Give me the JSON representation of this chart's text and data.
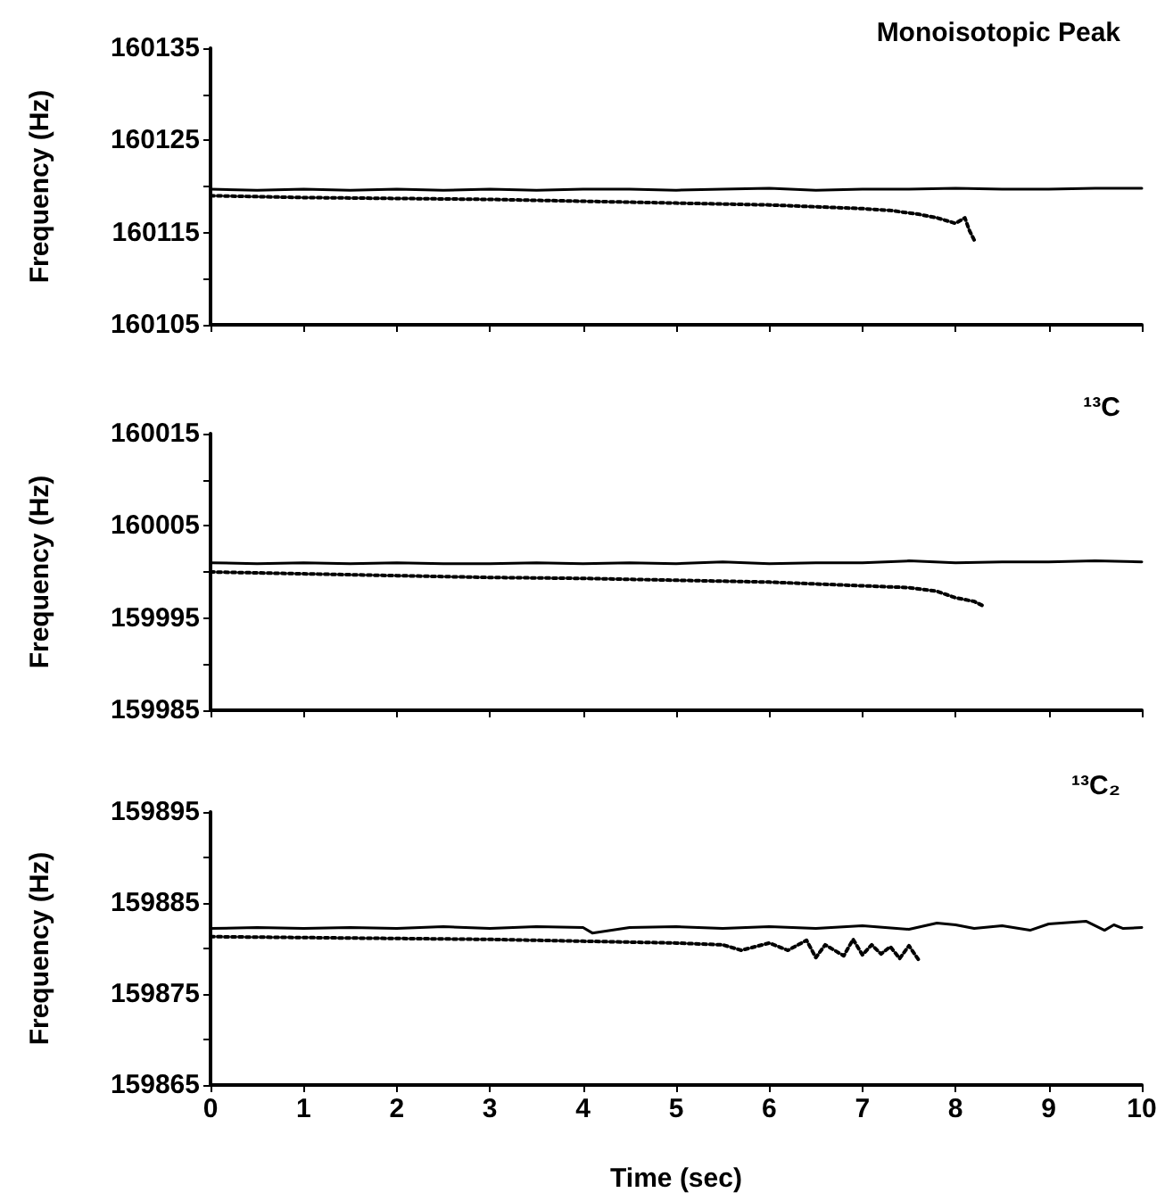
{
  "chart_data": [
    {
      "type": "line",
      "title": "Monoisotopic Peak",
      "ylabel": "Frequency (Hz)",
      "xlim": [
        0,
        10
      ],
      "xticks": [
        0,
        1,
        2,
        3,
        4,
        5,
        6,
        7,
        8,
        9,
        10
      ],
      "ylim": [
        160105,
        160135
      ],
      "yticks": [
        160105,
        {
          "value": 160110,
          "label": null
        },
        160115,
        {
          "value": 160120,
          "label": null
        },
        160125,
        {
          "value": 160130,
          "label": null
        },
        160135
      ],
      "tick_labels": "y",
      "grid": false,
      "marker": "none",
      "series": [
        {
          "color": "#000000",
          "line_style": "solid",
          "x": [
            0,
            0.5,
            1,
            1.5,
            2,
            2.5,
            3,
            3.5,
            4,
            4.5,
            5,
            5.5,
            6,
            6.5,
            7,
            7.5,
            8,
            8.5,
            9,
            9.5,
            10
          ],
          "values": [
            160119.7,
            160119.6,
            160119.7,
            160119.6,
            160119.7,
            160119.6,
            160119.7,
            160119.6,
            160119.7,
            160119.7,
            160119.6,
            160119.7,
            160119.8,
            160119.6,
            160119.7,
            160119.7,
            160119.8,
            160119.7,
            160119.7,
            160119.8,
            160119.8
          ]
        },
        {
          "color": "#000000",
          "line_style": "dotted",
          "x": [
            0,
            1,
            2,
            3,
            4,
            5,
            6,
            6.5,
            7,
            7.3,
            7.6,
            7.8,
            8.0,
            8.1,
            8.15,
            8.2
          ],
          "values": [
            160119.0,
            160118.8,
            160118.7,
            160118.6,
            160118.4,
            160118.2,
            160118.0,
            160117.8,
            160117.6,
            160117.4,
            160117.0,
            160116.6,
            160116.0,
            160116.6,
            160115.2,
            160114.2
          ]
        }
      ]
    },
    {
      "type": "line",
      "title": "¹³C",
      "ylabel": "Frequency (Hz)",
      "xlim": [
        0,
        10
      ],
      "xticks": [
        0,
        1,
        2,
        3,
        4,
        5,
        6,
        7,
        8,
        9,
        10
      ],
      "ylim": [
        159985,
        160015
      ],
      "yticks": [
        159985,
        {
          "value": 159990,
          "label": null
        },
        159995,
        {
          "value": 160000,
          "label": null
        },
        160005,
        {
          "value": 160010,
          "label": null
        },
        160015
      ],
      "tick_labels": "y",
      "grid": false,
      "marker": "none",
      "series": [
        {
          "color": "#000000",
          "line_style": "solid",
          "x": [
            0,
            0.5,
            1,
            1.5,
            2,
            2.5,
            3,
            3.5,
            4,
            4.5,
            5,
            5.5,
            6,
            6.5,
            7,
            7.5,
            8,
            8.5,
            9,
            9.5,
            10
          ],
          "values": [
            160001.0,
            160000.9,
            160001.0,
            160000.9,
            160001.0,
            160000.9,
            160000.9,
            160001.0,
            160000.9,
            160001.0,
            160000.9,
            160001.1,
            160000.9,
            160001.0,
            160001.0,
            160001.2,
            160001.0,
            160001.1,
            160001.1,
            160001.2,
            160001.1
          ]
        },
        {
          "color": "#000000",
          "line_style": "dotted",
          "x": [
            0,
            1,
            2,
            3,
            4,
            5,
            6,
            6.5,
            7,
            7.5,
            7.8,
            8.0,
            8.2,
            8.3
          ],
          "values": [
            160000.0,
            159999.8,
            159999.6,
            159999.4,
            159999.3,
            159999.1,
            159998.9,
            159998.7,
            159998.5,
            159998.3,
            159997.9,
            159997.2,
            159996.8,
            159996.3
          ]
        }
      ]
    },
    {
      "type": "line",
      "title": "¹³C₂",
      "ylabel": "Frequency (Hz)",
      "xlabel": "Time (sec)",
      "xlim": [
        0,
        10
      ],
      "xticks": [
        0,
        1,
        2,
        3,
        4,
        5,
        6,
        7,
        8,
        9,
        10
      ],
      "ylim": [
        159865,
        159895
      ],
      "yticks": [
        159865,
        {
          "value": 159870,
          "label": null
        },
        159875,
        {
          "value": 159880,
          "label": null
        },
        159885,
        {
          "value": 159890,
          "label": null
        },
        159895
      ],
      "grid": false,
      "marker": "none",
      "series": [
        {
          "color": "#000000",
          "line_style": "solid",
          "x": [
            0,
            0.5,
            1,
            1.5,
            2,
            2.5,
            3,
            3.5,
            4,
            4.1,
            4.5,
            5,
            5.5,
            6,
            6.5,
            7,
            7.5,
            7.8,
            8,
            8.2,
            8.5,
            8.8,
            9,
            9.4,
            9.6,
            9.7,
            9.8,
            10
          ],
          "values": [
            159882.2,
            159882.3,
            159882.2,
            159882.3,
            159882.2,
            159882.4,
            159882.2,
            159882.4,
            159882.3,
            159881.7,
            159882.3,
            159882.4,
            159882.2,
            159882.4,
            159882.2,
            159882.5,
            159882.1,
            159882.8,
            159882.6,
            159882.2,
            159882.5,
            159882.0,
            159882.7,
            159883.0,
            159882.0,
            159882.6,
            159882.2,
            159882.3
          ]
        },
        {
          "color": "#000000",
          "line_style": "dotted",
          "x": [
            0,
            1,
            2,
            3,
            4,
            5,
            5.5,
            5.7,
            6,
            6.2,
            6.4,
            6.5,
            6.6,
            6.8,
            6.9,
            7.0,
            7.1,
            7.2,
            7.3,
            7.4,
            7.5,
            7.6
          ],
          "values": [
            159881.3,
            159881.2,
            159881.1,
            159881.0,
            159880.8,
            159880.6,
            159880.4,
            159879.8,
            159880.6,
            159879.8,
            159880.9,
            159879.0,
            159880.4,
            159879.2,
            159881.0,
            159879.3,
            159880.4,
            159879.4,
            159880.2,
            159878.9,
            159880.3,
            159878.8
          ]
        }
      ]
    }
  ]
}
